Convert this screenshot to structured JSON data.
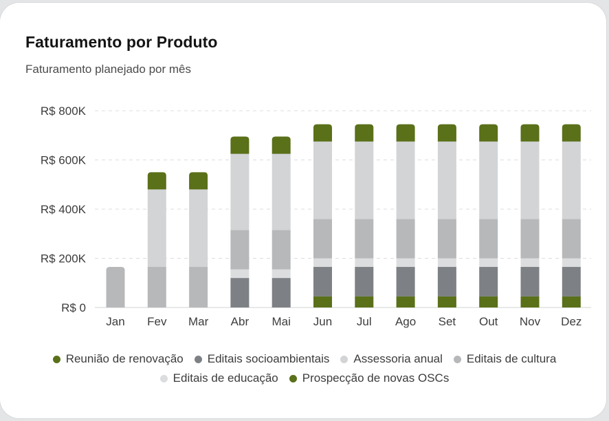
{
  "header": {
    "title": "Faturamento por Produto",
    "subtitle": "Faturamento planejado por mês"
  },
  "chart_data": {
    "type": "bar",
    "stacked": true,
    "categories": [
      "Jan",
      "Fev",
      "Mar",
      "Abr",
      "Mai",
      "Jun",
      "Jul",
      "Ago",
      "Set",
      "Out",
      "Nov",
      "Dez"
    ],
    "y_ticks": [
      "R$ 0",
      "R$ 200K",
      "R$ 400K",
      "R$ 600K",
      "R$ 800K"
    ],
    "ylim": [
      0,
      800000
    ],
    "grid": true,
    "legend_position": "bottom",
    "series": [
      {
        "name": "Prospecção de novas OSCs",
        "color": "#5a7019",
        "values": [
          0,
          0,
          0,
          0,
          0,
          45000,
          45000,
          45000,
          45000,
          45000,
          45000,
          45000
        ]
      },
      {
        "name": "Editais socioambientais",
        "color": "#7d8084",
        "values": [
          0,
          0,
          0,
          120000,
          120000,
          120000,
          120000,
          120000,
          120000,
          120000,
          120000,
          120000
        ]
      },
      {
        "name": "Editais de educação",
        "color": "#dcddde",
        "values": [
          0,
          0,
          0,
          35000,
          35000,
          35000,
          35000,
          35000,
          35000,
          35000,
          35000,
          35000
        ]
      },
      {
        "name": "Editais de cultura",
        "color": "#b6b8ba",
        "values": [
          165000,
          165000,
          165000,
          160000,
          160000,
          160000,
          160000,
          160000,
          160000,
          160000,
          160000,
          160000
        ]
      },
      {
        "name": "Assessoria anual",
        "color": "#d2d4d6",
        "values": [
          0,
          315000,
          315000,
          310000,
          310000,
          315000,
          315000,
          315000,
          315000,
          315000,
          315000,
          315000
        ]
      },
      {
        "name": "Reunião de renovação",
        "color": "#5a7019",
        "values": [
          0,
          70000,
          70000,
          70000,
          70000,
          70000,
          70000,
          70000,
          70000,
          70000,
          70000,
          70000
        ]
      }
    ],
    "legend": [
      {
        "name": "Reunião de renovação",
        "color": "#5a7019"
      },
      {
        "name": "Editais socioambientais",
        "color": "#7d8084"
      },
      {
        "name": "Assessoria anual",
        "color": "#d2d4d6"
      },
      {
        "name": "Editais de cultura",
        "color": "#b6b8ba"
      },
      {
        "name": "Editais de educação",
        "color": "#dcddde"
      },
      {
        "name": "Prospecção de novas OSCs",
        "color": "#5a7019"
      }
    ]
  }
}
